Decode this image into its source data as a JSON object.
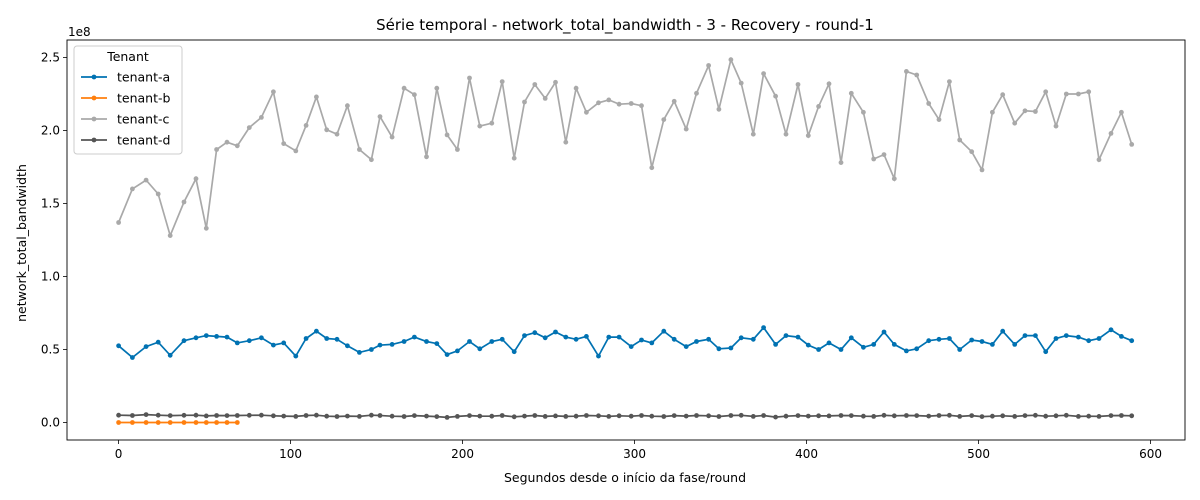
{
  "chart_data": {
    "type": "line",
    "title": "Série temporal - network_total_bandwidth - 3 - Recovery - round-1",
    "xlabel": "Segundos desde o início da fase/round",
    "ylabel": "network_total_bandwidth",
    "y_offset_label": "1e8",
    "xlim": [
      -30,
      620
    ],
    "ylim": [
      -12000000,
      262000000
    ],
    "x_ticks": [
      0,
      100,
      200,
      300,
      400,
      500,
      600
    ],
    "x_tick_labels": [
      "0",
      "100",
      "200",
      "300",
      "400",
      "500",
      "600"
    ],
    "y_ticks": [
      0,
      50000000,
      100000000,
      150000000,
      200000000,
      250000000
    ],
    "y_tick_labels": [
      "0.0",
      "0.5",
      "1.0",
      "1.5",
      "2.0",
      "2.5"
    ],
    "grid": false,
    "legend_title": "Tenant",
    "legend_position": "upper-left",
    "series": [
      {
        "name": "tenant-a",
        "color": "#0072b2",
        "x": [
          0,
          8,
          16,
          23,
          30,
          38,
          45,
          51,
          57,
          63,
          69,
          76,
          83,
          90,
          96,
          103,
          109,
          115,
          121,
          127,
          133,
          140,
          147,
          152,
          159,
          166,
          172,
          179,
          185,
          191,
          197,
          204,
          210,
          217,
          223,
          230,
          236,
          242,
          248,
          254,
          260,
          266,
          272,
          279,
          285,
          291,
          298,
          304,
          310,
          317,
          323,
          330,
          336,
          343,
          349,
          356,
          362,
          369,
          375,
          382,
          388,
          395,
          401,
          407,
          413,
          420,
          426,
          433,
          439,
          445,
          451,
          458,
          464,
          471,
          477,
          483,
          489,
          496,
          502,
          508,
          514,
          521,
          527,
          533,
          539,
          545,
          551,
          558,
          564,
          570,
          577,
          583,
          589
        ],
        "y": [
          52500000,
          44500000,
          52000000,
          55000000,
          46000000,
          56000000,
          58000000,
          59500000,
          59000000,
          58500000,
          54500000,
          56000000,
          58000000,
          53000000,
          54500000,
          45500000,
          57500000,
          62500000,
          57500000,
          57000000,
          52500000,
          48000000,
          50000000,
          53000000,
          53500000,
          55500000,
          58500000,
          55500000,
          54000000,
          46500000,
          49000000,
          55500000,
          50500000,
          55500000,
          57000000,
          48500000,
          59500000,
          61500000,
          58000000,
          62000000,
          58500000,
          57000000,
          59000000,
          45500000,
          58500000,
          58500000,
          52000000,
          56500000,
          54500000,
          62500000,
          57000000,
          52000000,
          55500000,
          57000000,
          50500000,
          51000000,
          58000000,
          57000000,
          65000000,
          53500000,
          59500000,
          58500000,
          53000000,
          50000000,
          54500000,
          50000000,
          58000000,
          51500000,
          53500000,
          62000000,
          53500000,
          49000000,
          50500000,
          56000000,
          57000000,
          57500000,
          50000000,
          56500000,
          55500000,
          53500000,
          62500000,
          53500000,
          59500000,
          59500000,
          48500000,
          57500000,
          59500000,
          58500000,
          56000000,
          57500000,
          63500000,
          59000000,
          56000000
        ]
      },
      {
        "name": "tenant-b",
        "color": "#ff7f0e",
        "x": [
          0,
          8,
          16,
          23,
          30,
          38,
          45,
          51,
          57,
          63,
          69
        ],
        "y": [
          0,
          0,
          0,
          0,
          0,
          0,
          0,
          0,
          0,
          0,
          0
        ]
      },
      {
        "name": "tenant-c",
        "color": "#a9a9a9",
        "x": [
          0,
          8,
          16,
          23,
          30,
          38,
          45,
          51,
          57,
          63,
          69,
          76,
          83,
          90,
          96,
          103,
          109,
          115,
          121,
          127,
          133,
          140,
          147,
          152,
          159,
          166,
          172,
          179,
          185,
          191,
          197,
          204,
          210,
          217,
          223,
          230,
          236,
          242,
          248,
          254,
          260,
          266,
          272,
          279,
          285,
          291,
          298,
          304,
          310,
          317,
          323,
          330,
          336,
          343,
          349,
          356,
          362,
          369,
          375,
          382,
          388,
          395,
          401,
          407,
          413,
          420,
          426,
          433,
          439,
          445,
          451,
          458,
          464,
          471,
          477,
          483,
          489,
          496,
          502,
          508,
          514,
          521,
          527,
          533,
          539,
          545,
          551,
          558,
          564,
          570,
          577,
          583,
          589
        ],
        "y": [
          137000000,
          160000000,
          166000000,
          156500000,
          128000000,
          151000000,
          167000000,
          133000000,
          187000000,
          192000000,
          189500000,
          202000000,
          209000000,
          226500000,
          191000000,
          186000000,
          203500000,
          223000000,
          200500000,
          197500000,
          217000000,
          187000000,
          180000000,
          209500000,
          195500000,
          229000000,
          224500000,
          182000000,
          229000000,
          197000000,
          187000000,
          236000000,
          203000000,
          205000000,
          233500000,
          181000000,
          219500000,
          231500000,
          222000000,
          233000000,
          192000000,
          229000000,
          212500000,
          219000000,
          221000000,
          218000000,
          218500000,
          217000000,
          174500000,
          207500000,
          220000000,
          201000000,
          225500000,
          244500000,
          214500000,
          248500000,
          232500000,
          197500000,
          239000000,
          223500000,
          197500000,
          231500000,
          196500000,
          216500000,
          232000000,
          178000000,
          225500000,
          212500000,
          180500000,
          183500000,
          167000000,
          240500000,
          238000000,
          218500000,
          207500000,
          233500000,
          193500000,
          185500000,
          173000000,
          212500000,
          224500000,
          205000000,
          213500000,
          213000000,
          226500000,
          203000000,
          225000000,
          225000000,
          226500000,
          180000000,
          198000000,
          212500000,
          190500000
        ]
      },
      {
        "name": "tenant-d",
        "color": "#555555",
        "x": [
          0,
          8,
          16,
          23,
          30,
          38,
          45,
          51,
          57,
          63,
          69,
          76,
          83,
          90,
          96,
          103,
          109,
          115,
          121,
          127,
          133,
          140,
          147,
          152,
          159,
          166,
          172,
          179,
          185,
          191,
          197,
          204,
          210,
          217,
          223,
          230,
          236,
          242,
          248,
          254,
          260,
          266,
          272,
          279,
          285,
          291,
          298,
          304,
          310,
          317,
          323,
          330,
          336,
          343,
          349,
          356,
          362,
          369,
          375,
          382,
          388,
          395,
          401,
          407,
          413,
          420,
          426,
          433,
          439,
          445,
          451,
          458,
          464,
          471,
          477,
          483,
          489,
          496,
          502,
          508,
          514,
          521,
          527,
          533,
          539,
          545,
          551,
          558,
          564,
          570,
          577,
          583,
          589
        ],
        "y": [
          5000000,
          4800000,
          5400000,
          5000000,
          4700000,
          4900000,
          5000000,
          4500000,
          4800000,
          4700000,
          4800000,
          4900000,
          5000000,
          4600000,
          4400000,
          4200000,
          4800000,
          5000000,
          4300000,
          4100000,
          4400000,
          4200000,
          5000000,
          4800000,
          4300000,
          4100000,
          4700000,
          4400000,
          4000000,
          3500000,
          4200000,
          4700000,
          4400000,
          4300000,
          4800000,
          3900000,
          4400000,
          4800000,
          4200000,
          4500000,
          4200000,
          4300000,
          4800000,
          4600000,
          4200000,
          4600000,
          4300000,
          4800000,
          4300000,
          4100000,
          4700000,
          4400000,
          4800000,
          4600000,
          4100000,
          4800000,
          4900000,
          4200000,
          4800000,
          3700000,
          4300000,
          4700000,
          4400000,
          4600000,
          4500000,
          4800000,
          4700000,
          4300000,
          4200000,
          4900000,
          4600000,
          4800000,
          4700000,
          4400000,
          4800000,
          4900000,
          4200000,
          4700000,
          4000000,
          4300000,
          4600000,
          4200000,
          4700000,
          4900000,
          4300000,
          4600000,
          4900000,
          4200000,
          4300000,
          4200000,
          4700000,
          4800000,
          4600000
        ]
      }
    ]
  }
}
